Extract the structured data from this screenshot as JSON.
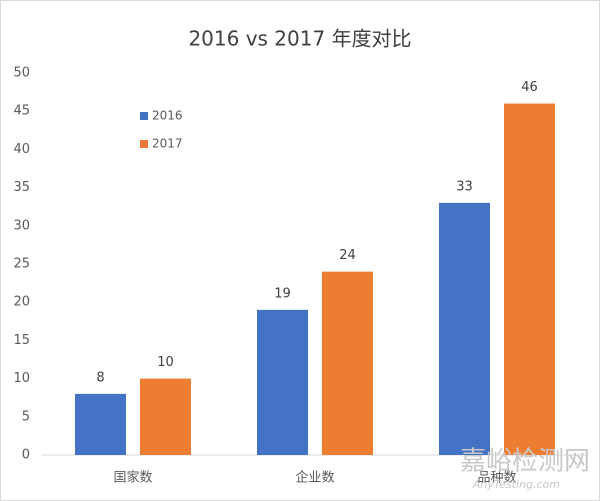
{
  "chart_data": {
    "type": "bar",
    "title": "2016 vs 2017 年度对比",
    "categories": [
      "国家数",
      "企业数",
      "品种数"
    ],
    "series": [
      {
        "name": "2016",
        "color": "#4472c4",
        "values": [
          8,
          19,
          33
        ]
      },
      {
        "name": "2017",
        "color": "#ed7d31",
        "values": [
          10,
          24,
          46
        ]
      }
    ],
    "ylim": [
      0,
      50
    ],
    "yticks": [
      0,
      5,
      10,
      15,
      20,
      25,
      30,
      35,
      40,
      45,
      50
    ],
    "grid": false,
    "legend": "upper-left",
    "watermark": "嘉峪检测网",
    "watermark_url": "AnyTesting.com"
  }
}
